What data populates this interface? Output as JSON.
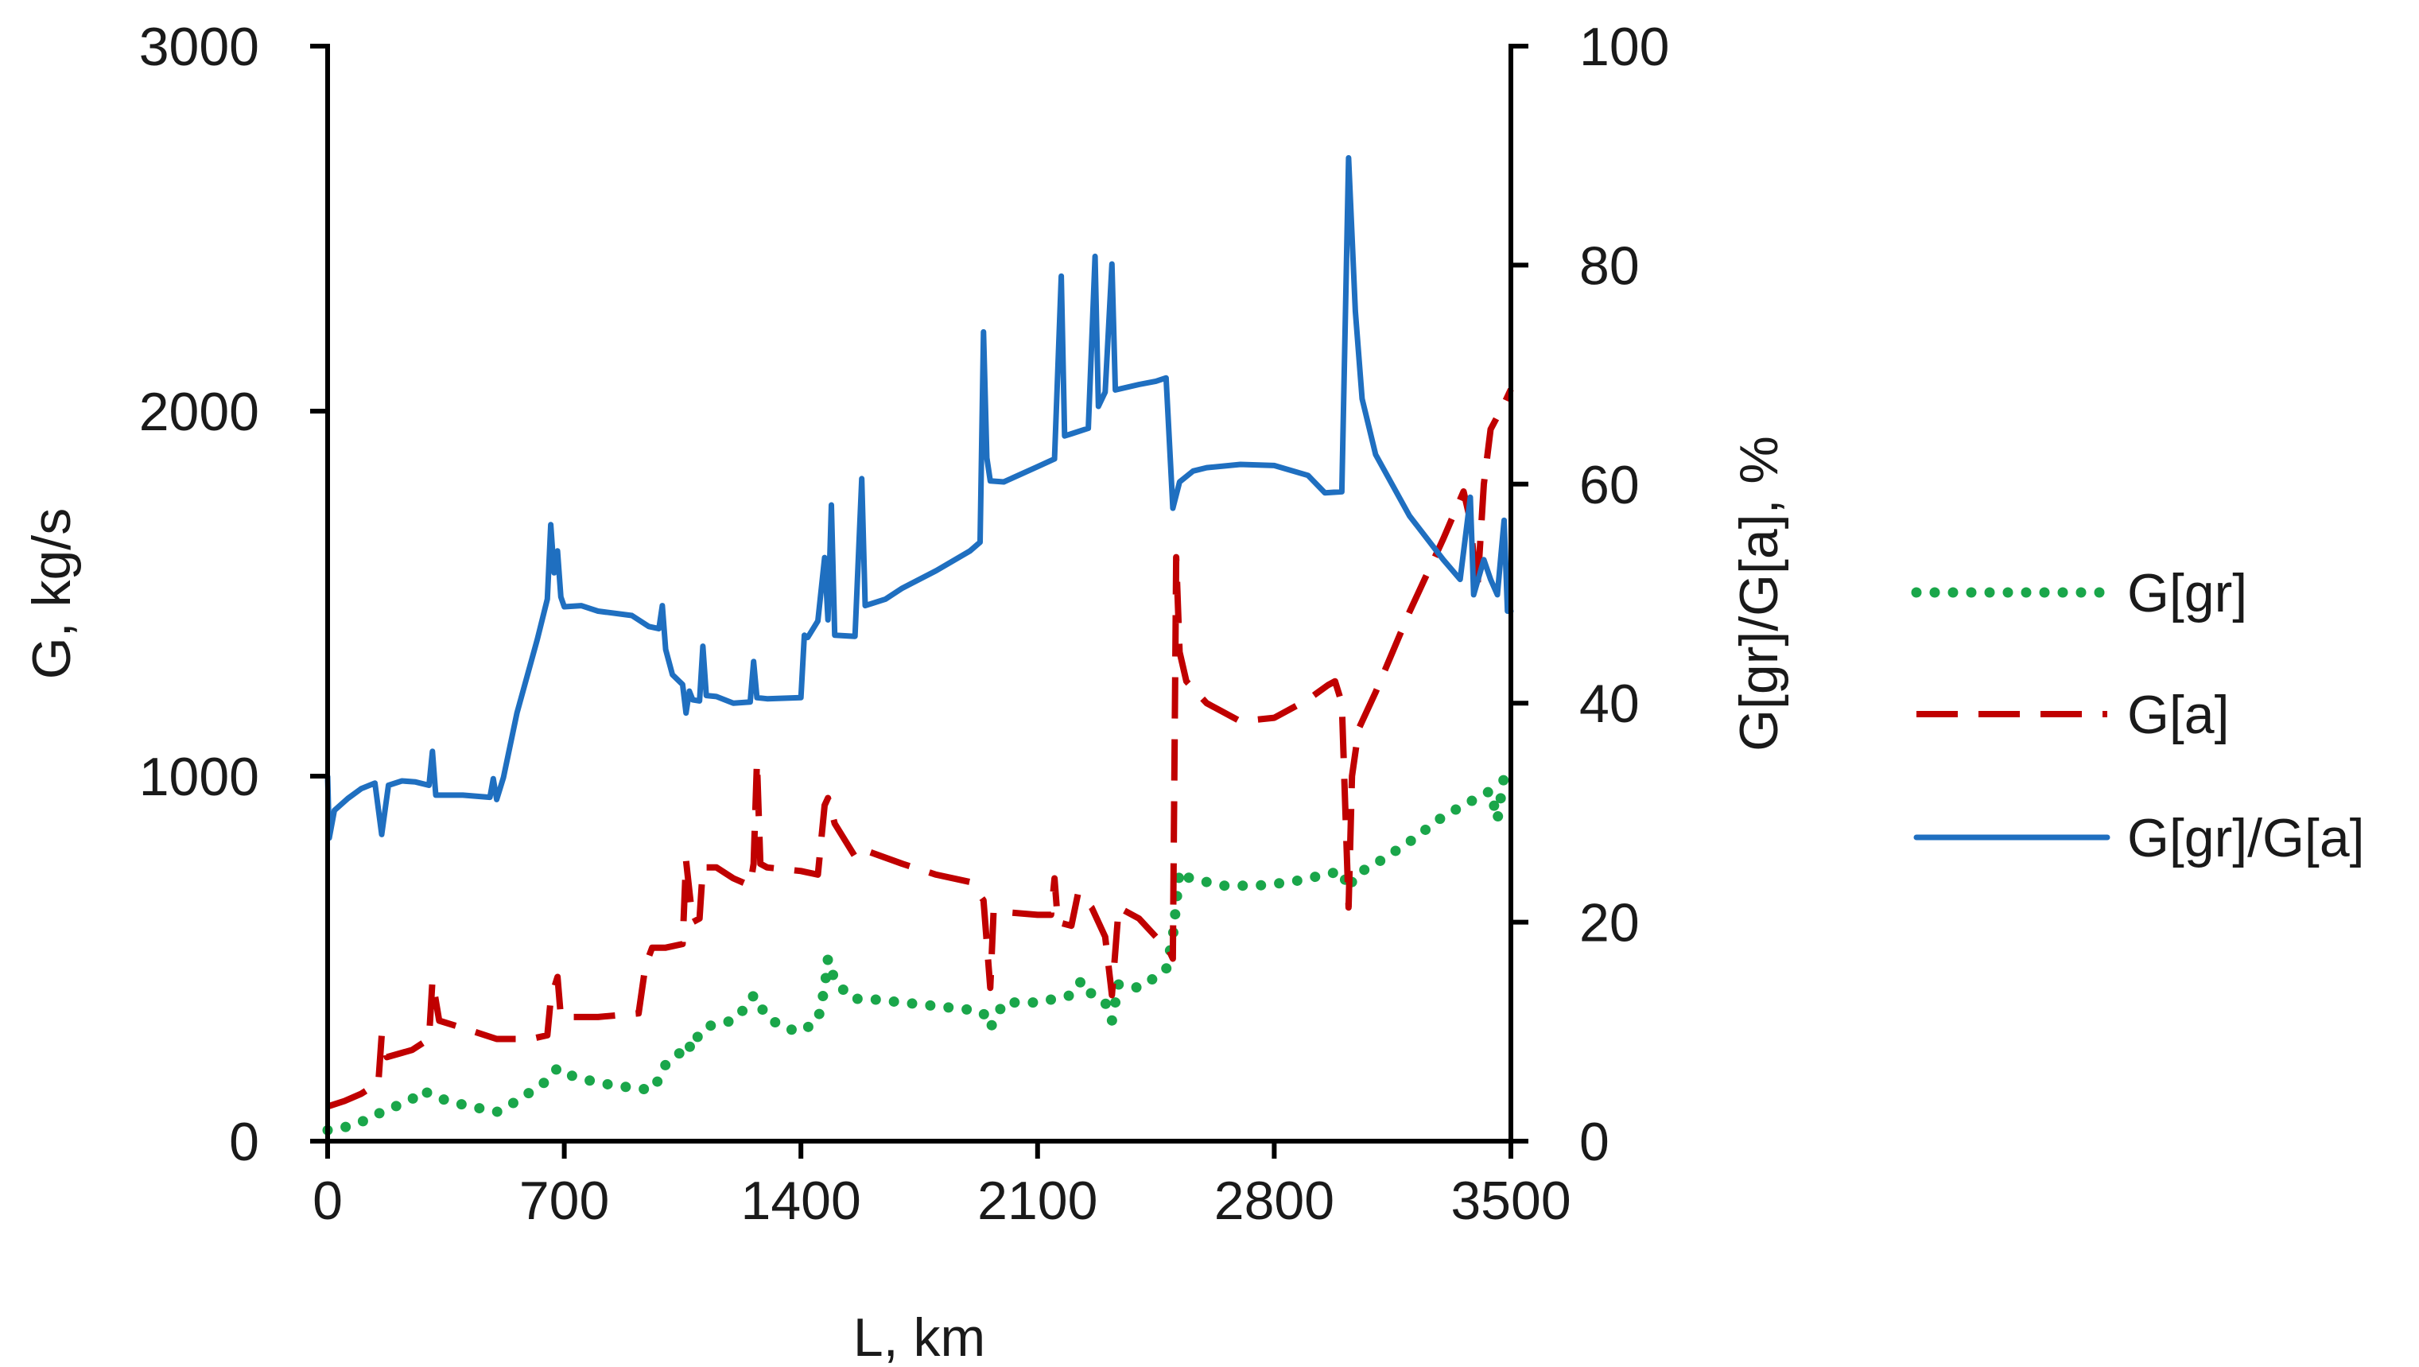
{
  "chart_data": {
    "type": "line",
    "xlabel": "L, km",
    "ylabel_left": "G, kg/s",
    "ylabel_right": "G[gr]/G[a], %",
    "xlim": [
      0,
      3500
    ],
    "ylim_left": [
      0,
      3000
    ],
    "ylim_right": [
      0,
      100
    ],
    "x_ticks": [
      0,
      700,
      1400,
      2100,
      2800,
      3500
    ],
    "y_left_ticks": [
      0,
      1000,
      2000,
      3000
    ],
    "y_right_ticks": [
      0,
      20,
      40,
      60,
      80,
      100
    ],
    "grid": false,
    "legend_position": "right",
    "series": [
      {
        "name": "G[gr]",
        "axis": "left",
        "style": "dotted",
        "color": "#1aa64a",
        "points": [
          [
            0,
            30
          ],
          [
            60,
            40
          ],
          [
            120,
            60
          ],
          [
            160,
            80
          ],
          [
            200,
            95
          ],
          [
            260,
            120
          ],
          [
            280,
            140
          ],
          [
            320,
            120
          ],
          [
            400,
            100
          ],
          [
            500,
            80
          ],
          [
            560,
            110
          ],
          [
            640,
            160
          ],
          [
            680,
            200
          ],
          [
            720,
            180
          ],
          [
            800,
            160
          ],
          [
            870,
            150
          ],
          [
            960,
            140
          ],
          [
            980,
            170
          ],
          [
            1000,
            210
          ],
          [
            1040,
            240
          ],
          [
            1060,
            270
          ],
          [
            1080,
            250
          ],
          [
            1100,
            300
          ],
          [
            1140,
            320
          ],
          [
            1200,
            330
          ],
          [
            1250,
            380
          ],
          [
            1260,
            400
          ],
          [
            1300,
            340
          ],
          [
            1350,
            310
          ],
          [
            1400,
            300
          ],
          [
            1450,
            330
          ],
          [
            1470,
            420
          ],
          [
            1480,
            500
          ],
          [
            1500,
            440
          ],
          [
            1550,
            390
          ],
          [
            1600,
            390
          ],
          [
            1700,
            380
          ],
          [
            1800,
            370
          ],
          [
            1900,
            360
          ],
          [
            1940,
            350
          ],
          [
            1960,
            310
          ],
          [
            2000,
            380
          ],
          [
            2100,
            380
          ],
          [
            2200,
            400
          ],
          [
            2230,
            440
          ],
          [
            2250,
            410
          ],
          [
            2300,
            380
          ],
          [
            2320,
            330
          ],
          [
            2340,
            430
          ],
          [
            2400,
            420
          ],
          [
            2450,
            450
          ],
          [
            2480,
            470
          ],
          [
            2500,
            560
          ],
          [
            2520,
            740
          ],
          [
            2550,
            720
          ],
          [
            2650,
            700
          ],
          [
            2750,
            700
          ],
          [
            2850,
            710
          ],
          [
            2950,
            730
          ],
          [
            3000,
            740
          ],
          [
            3020,
            690
          ],
          [
            3040,
            730
          ],
          [
            3100,
            760
          ],
          [
            3200,
            820
          ],
          [
            3300,
            890
          ],
          [
            3380,
            930
          ],
          [
            3440,
            960
          ],
          [
            3460,
            880
          ],
          [
            3480,
            1000
          ],
          [
            3500,
            1010
          ]
        ]
      },
      {
        "name": "G[a]",
        "axis": "left",
        "style": "dashed",
        "color": "#c00000",
        "points": [
          [
            0,
            95
          ],
          [
            50,
            110
          ],
          [
            100,
            130
          ],
          [
            150,
            160
          ],
          [
            160,
            290
          ],
          [
            175,
            230
          ],
          [
            250,
            250
          ],
          [
            300,
            280
          ],
          [
            310,
            440
          ],
          [
            330,
            330
          ],
          [
            400,
            310
          ],
          [
            500,
            280
          ],
          [
            600,
            280
          ],
          [
            650,
            290
          ],
          [
            660,
            390
          ],
          [
            680,
            450
          ],
          [
            690,
            340
          ],
          [
            800,
            340
          ],
          [
            920,
            350
          ],
          [
            940,
            480
          ],
          [
            960,
            530
          ],
          [
            1000,
            530
          ],
          [
            1050,
            540
          ],
          [
            1060,
            770
          ],
          [
            1080,
            600
          ],
          [
            1100,
            610
          ],
          [
            1110,
            750
          ],
          [
            1150,
            750
          ],
          [
            1200,
            720
          ],
          [
            1250,
            700
          ],
          [
            1260,
            760
          ],
          [
            1270,
            1040
          ],
          [
            1280,
            760
          ],
          [
            1300,
            750
          ],
          [
            1400,
            740
          ],
          [
            1450,
            730
          ],
          [
            1470,
            920
          ],
          [
            1480,
            940
          ],
          [
            1500,
            870
          ],
          [
            1560,
            780
          ],
          [
            1580,
            800
          ],
          [
            1700,
            760
          ],
          [
            1800,
            730
          ],
          [
            1900,
            710
          ],
          [
            1940,
            660
          ],
          [
            1960,
            420
          ],
          [
            1970,
            630
          ],
          [
            2100,
            620
          ],
          [
            2140,
            620
          ],
          [
            2150,
            720
          ],
          [
            2160,
            600
          ],
          [
            2200,
            590
          ],
          [
            2220,
            680
          ],
          [
            2260,
            640
          ],
          [
            2300,
            560
          ],
          [
            2320,
            400
          ],
          [
            2340,
            640
          ],
          [
            2400,
            610
          ],
          [
            2450,
            560
          ],
          [
            2480,
            540
          ],
          [
            2500,
            500
          ],
          [
            2510,
            1600
          ],
          [
            2520,
            1340
          ],
          [
            2540,
            1260
          ],
          [
            2600,
            1200
          ],
          [
            2700,
            1150
          ],
          [
            2800,
            1160
          ],
          [
            2900,
            1210
          ],
          [
            2960,
            1250
          ],
          [
            2980,
            1260
          ],
          [
            3000,
            1200
          ],
          [
            3020,
            640
          ],
          [
            3030,
            1000
          ],
          [
            3050,
            1130
          ],
          [
            3100,
            1230
          ],
          [
            3200,
            1450
          ],
          [
            3300,
            1650
          ],
          [
            3360,
            1780
          ],
          [
            3380,
            1700
          ],
          [
            3400,
            1500
          ],
          [
            3420,
            1800
          ],
          [
            3440,
            1950
          ],
          [
            3480,
            2020
          ],
          [
            3500,
            2060
          ]
        ]
      },
      {
        "name": "G[gr]/G[a]",
        "axis": "right",
        "style": "solid",
        "color": "#1f6fc0",
        "points": [
          [
            0,
            33.3
          ],
          [
            5,
            27.7
          ],
          [
            20,
            30.2
          ],
          [
            60,
            31.3
          ],
          [
            100,
            32.2
          ],
          [
            140,
            32.7
          ],
          [
            160,
            28.0
          ],
          [
            180,
            32.5
          ],
          [
            220,
            32.9
          ],
          [
            260,
            32.8
          ],
          [
            300,
            32.5
          ],
          [
            310,
            35.6
          ],
          [
            320,
            31.6
          ],
          [
            400,
            31.6
          ],
          [
            480,
            31.4
          ],
          [
            490,
            33.1
          ],
          [
            500,
            31.2
          ],
          [
            520,
            33.2
          ],
          [
            560,
            39.1
          ],
          [
            620,
            45.8
          ],
          [
            650,
            49.5
          ],
          [
            660,
            56.3
          ],
          [
            670,
            51.9
          ],
          [
            680,
            53.9
          ],
          [
            690,
            49.7
          ],
          [
            700,
            48.8
          ],
          [
            750,
            48.9
          ],
          [
            800,
            48.4
          ],
          [
            900,
            48.0
          ],
          [
            950,
            47.0
          ],
          [
            980,
            46.8
          ],
          [
            990,
            48.9
          ],
          [
            1000,
            44.9
          ],
          [
            1020,
            42.6
          ],
          [
            1050,
            41.7
          ],
          [
            1060,
            39.1
          ],
          [
            1070,
            41.1
          ],
          [
            1080,
            40.3
          ],
          [
            1100,
            40.2
          ],
          [
            1110,
            45.2
          ],
          [
            1120,
            40.7
          ],
          [
            1150,
            40.6
          ],
          [
            1200,
            40.0
          ],
          [
            1250,
            40.1
          ],
          [
            1260,
            43.8
          ],
          [
            1270,
            40.5
          ],
          [
            1300,
            40.4
          ],
          [
            1400,
            40.5
          ],
          [
            1410,
            46.2
          ],
          [
            1420,
            46.0
          ],
          [
            1450,
            47.5
          ],
          [
            1470,
            53.3
          ],
          [
            1480,
            47.6
          ],
          [
            1490,
            58.1
          ],
          [
            1500,
            46.2
          ],
          [
            1560,
            46.1
          ],
          [
            1580,
            60.5
          ],
          [
            1590,
            48.9
          ],
          [
            1650,
            49.5
          ],
          [
            1700,
            50.5
          ],
          [
            1800,
            52.1
          ],
          [
            1900,
            53.9
          ],
          [
            1930,
            54.7
          ],
          [
            1940,
            73.9
          ],
          [
            1950,
            62.4
          ],
          [
            1960,
            60.3
          ],
          [
            2000,
            60.2
          ],
          [
            2100,
            61.6
          ],
          [
            2150,
            62.3
          ],
          [
            2170,
            79.0
          ],
          [
            2180,
            64.4
          ],
          [
            2200,
            64.6
          ],
          [
            2250,
            65.1
          ],
          [
            2270,
            80.8
          ],
          [
            2280,
            67.1
          ],
          [
            2300,
            68.4
          ],
          [
            2320,
            80.1
          ],
          [
            2330,
            68.6
          ],
          [
            2400,
            69.1
          ],
          [
            2450,
            69.4
          ],
          [
            2480,
            69.7
          ],
          [
            2500,
            57.8
          ],
          [
            2520,
            60.2
          ],
          [
            2560,
            61.2
          ],
          [
            2600,
            61.5
          ],
          [
            2700,
            61.8
          ],
          [
            2800,
            61.7
          ],
          [
            2900,
            60.8
          ],
          [
            2950,
            59.2
          ],
          [
            3000,
            59.3
          ],
          [
            3020,
            89.8
          ],
          [
            3040,
            75.8
          ],
          [
            3060,
            67.8
          ],
          [
            3100,
            62.7
          ],
          [
            3200,
            57.1
          ],
          [
            3300,
            53.1
          ],
          [
            3350,
            51.3
          ],
          [
            3380,
            58.8
          ],
          [
            3390,
            49.9
          ],
          [
            3420,
            53.1
          ],
          [
            3440,
            51.3
          ],
          [
            3460,
            49.9
          ],
          [
            3480,
            56.7
          ],
          [
            3490,
            48.4
          ],
          [
            3500,
            48.4
          ]
        ]
      }
    ]
  }
}
